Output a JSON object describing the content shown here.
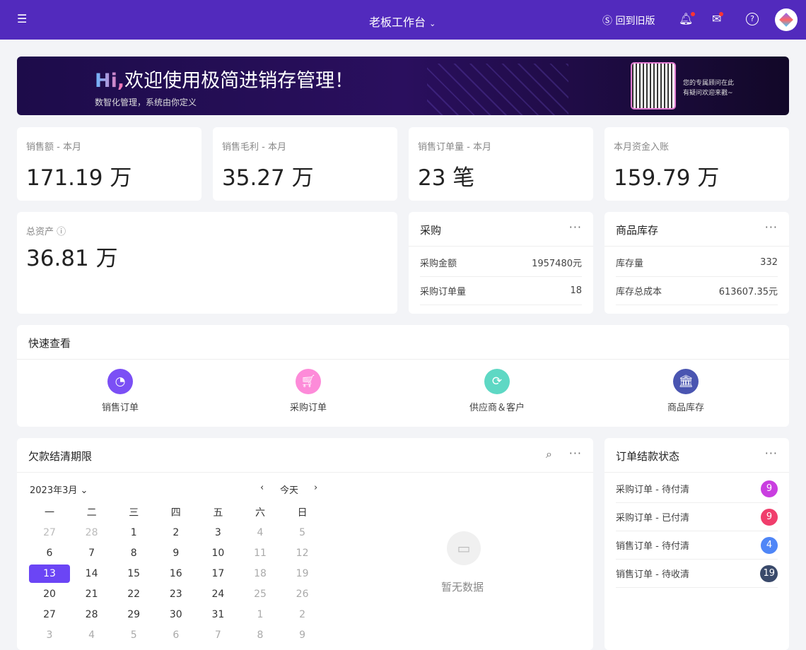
{
  "header": {
    "title": "老板工作台",
    "old_version": "回到旧版"
  },
  "banner": {
    "hi": "Hi,",
    "title": "欢迎使用极简进销存管理！",
    "subtitle": "数智化管理，系统由你定义",
    "consultant_line1": "您的专属顾问在此",
    "consultant_line2": "有疑问欢迎来戳~"
  },
  "stats": [
    {
      "label": "销售额 - 本月",
      "value": "171.19 万"
    },
    {
      "label": "销售毛利 - 本月",
      "value": "35.27 万"
    },
    {
      "label": "销售订单量 - 本月",
      "value": "23 笔"
    },
    {
      "label": "本月资金入账",
      "value": "159.79 万"
    }
  ],
  "assets": {
    "label": "总资产",
    "value": "36.81 万"
  },
  "purchase": {
    "title": "采购",
    "rows": [
      {
        "k": "采购金额",
        "v": "1957480元"
      },
      {
        "k": "采购订单量",
        "v": "18"
      }
    ]
  },
  "stock": {
    "title": "商品库存",
    "rows": [
      {
        "k": "库存量",
        "v": "332"
      },
      {
        "k": "库存总成本",
        "v": "613607.35元"
      }
    ]
  },
  "quick": {
    "title": "快速查看",
    "items": [
      {
        "label": "销售订单",
        "color": "#7b4ff5",
        "icon": "pie-chart"
      },
      {
        "label": "采购订单",
        "color": "#fd8bd9",
        "icon": "cart"
      },
      {
        "label": "供应商＆客户",
        "color": "#5ed8c4",
        "icon": "refresh"
      },
      {
        "label": "商品库存",
        "color": "#4a55b1",
        "icon": "bank"
      }
    ]
  },
  "debt": {
    "title": "欠款结清期限",
    "month": "2023年3月",
    "today": "今天",
    "empty": "暂无数据",
    "weekdays": [
      "一",
      "二",
      "三",
      "四",
      "五",
      "六",
      "日"
    ],
    "weeks": [
      [
        "27",
        "28",
        "1",
        "2",
        "3",
        "4",
        "5"
      ],
      [
        "6",
        "7",
        "8",
        "9",
        "10",
        "11",
        "12"
      ],
      [
        "13",
        "14",
        "15",
        "16",
        "17",
        "18",
        "19"
      ],
      [
        "20",
        "21",
        "22",
        "23",
        "24",
        "25",
        "26"
      ],
      [
        "27",
        "28",
        "29",
        "30",
        "31",
        "1",
        "2"
      ],
      [
        "3",
        "4",
        "5",
        "6",
        "7",
        "8",
        "9"
      ]
    ],
    "selected": "13"
  },
  "orders": {
    "title": "订单结款状态",
    "rows": [
      {
        "label": "采购订单 - 待付清",
        "count": "9",
        "color": "#c93ee0"
      },
      {
        "label": "采购订单 - 已付清",
        "count": "9",
        "color": "#f03e6c"
      },
      {
        "label": "销售订单 - 待付清",
        "count": "4",
        "color": "#4f86f7"
      },
      {
        "label": "销售订单 - 待收清",
        "count": "19",
        "color": "#3a4a6b"
      }
    ]
  }
}
